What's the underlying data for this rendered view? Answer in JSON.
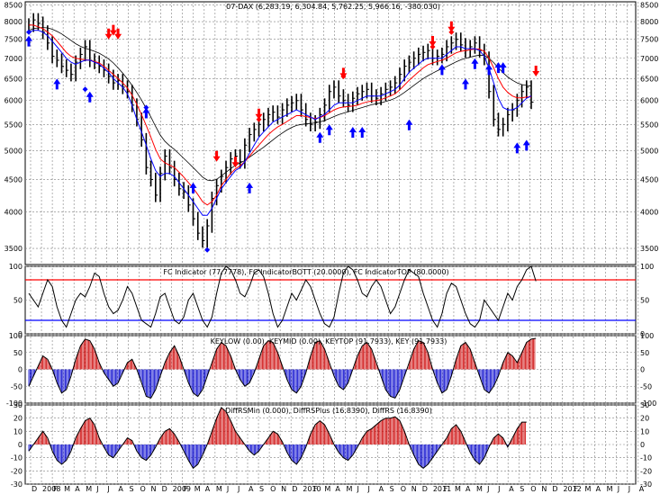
{
  "colors": {
    "frame": "#000000",
    "grid": "#808080",
    "price": "#000000",
    "ma_fast": "#0000ff",
    "ma_mid": "#ff0000",
    "ma_slow": "#000000",
    "buy": "#0000ff",
    "sell": "#ff0000",
    "fc_top": "#ff0000",
    "fc_bott": "#0000ff",
    "hist_pos": "#cc0000",
    "hist_neg": "#0000cc"
  },
  "chart_data": [
    {
      "type": "line",
      "title": "07-DAX (6,283.19, 6,304.84, 5,762.25, 5,966.16, -380.030)",
      "y_scale": "log",
      "ylim": [
        3300,
        8600
      ],
      "y_ticks": [
        8500,
        8000,
        7500,
        7000,
        6500,
        6000,
        5500,
        5000,
        4500,
        4000,
        3500
      ],
      "grid": true,
      "x_month_labels": [
        "D",
        "2008",
        "F",
        "M",
        "A",
        "M",
        "J",
        "J",
        "A",
        "S",
        "O",
        "N",
        "D",
        "2009",
        "F",
        "M",
        "A",
        "M",
        "J",
        "J",
        "A",
        "S",
        "O",
        "N",
        "D",
        "2010",
        "F",
        "M",
        "A",
        "M",
        "J",
        "J",
        "A",
        "S",
        "O",
        "N",
        "D",
        "2011",
        "F",
        "M",
        "A",
        "M",
        "J",
        "J",
        "A",
        "S",
        "O",
        "N",
        "D",
        "2012",
        "F",
        "M",
        "A",
        "M",
        "J",
        "J",
        "A"
      ],
      "series": [
        {
          "key": "close",
          "values": [
            7900,
            8050,
            7950,
            7700,
            7400,
            7050,
            6950,
            6800,
            6700,
            6600,
            6900,
            7100,
            7300,
            6950,
            6900,
            6800,
            6700,
            6550,
            6400,
            6450,
            6300,
            6200,
            5900,
            5600,
            5200,
            4700,
            4500,
            4250,
            4600,
            4900,
            4700,
            4500,
            4350,
            4300,
            4100,
            3900,
            3700,
            3600,
            3800,
            4200,
            4400,
            4550,
            4700,
            4850,
            4900,
            4800,
            5100,
            5300,
            5400,
            5500,
            5600,
            5700,
            5750,
            5650,
            5800,
            5900,
            5950,
            6000,
            5800,
            5600,
            5500,
            5550,
            5700,
            5900,
            6200,
            6300,
            6100,
            6000,
            5900,
            6050,
            6150,
            6200,
            6250,
            6100,
            6050,
            6150,
            6250,
            6300,
            6400,
            6600,
            6800,
            6900,
            7000,
            7100,
            7150,
            7200,
            7000,
            7050,
            7100,
            7300,
            7400,
            7500,
            7350,
            7200,
            7300,
            7400,
            7200,
            7000,
            6200,
            5600,
            5400,
            5500,
            5700,
            5800,
            6000,
            6200,
            6300,
            5966
          ]
        },
        {
          "key": "ma_fast",
          "values": [
            7700,
            7750,
            7750,
            7700,
            7600,
            7450,
            7300,
            7150,
            7000,
            6900,
            6850,
            6900,
            6950,
            6950,
            6900,
            6850,
            6750,
            6650,
            6500,
            6400,
            6300,
            6150,
            5900,
            5600,
            5350,
            5100,
            4850,
            4650,
            4550,
            4600,
            4600,
            4550,
            4450,
            4350,
            4250,
            4150,
            4050,
            3950,
            3950,
            4050,
            4200,
            4350,
            4450,
            4550,
            4650,
            4700,
            4800,
            4950,
            5100,
            5250,
            5350,
            5450,
            5550,
            5600,
            5650,
            5700,
            5750,
            5800,
            5750,
            5700,
            5650,
            5600,
            5650,
            5700,
            5800,
            5900,
            5950,
            5950,
            5950,
            5950,
            6000,
            6050,
            6100,
            6100,
            6100,
            6100,
            6150,
            6200,
            6250,
            6350,
            6500,
            6650,
            6750,
            6850,
            6950,
            7000,
            7000,
            7000,
            7000,
            7100,
            7200,
            7300,
            7300,
            7250,
            7250,
            7250,
            7200,
            7050,
            6750,
            6400,
            6050,
            5850,
            5800,
            5800,
            5850,
            5950,
            6050,
            6100
          ]
        },
        {
          "key": "ma_mid",
          "values": [
            7900,
            7900,
            7850,
            7800,
            7700,
            7600,
            7450,
            7300,
            7150,
            7050,
            7000,
            6980,
            6960,
            6950,
            6920,
            6880,
            6800,
            6700,
            6600,
            6500,
            6400,
            6280,
            6120,
            5920,
            5700,
            5480,
            5250,
            5020,
            4850,
            4780,
            4740,
            4700,
            4620,
            4540,
            4450,
            4360,
            4260,
            4150,
            4100,
            4150,
            4250,
            4400,
            4500,
            4600,
            4680,
            4730,
            4800,
            4900,
            5000,
            5100,
            5200,
            5300,
            5380,
            5450,
            5500,
            5560,
            5620,
            5680,
            5680,
            5660,
            5640,
            5620,
            5640,
            5680,
            5740,
            5800,
            5840,
            5860,
            5870,
            5880,
            5900,
            5940,
            5970,
            5990,
            6000,
            6020,
            6060,
            6100,
            6150,
            6240,
            6350,
            6460,
            6560,
            6660,
            6760,
            6840,
            6880,
            6920,
            6950,
            7000,
            7070,
            7140,
            7180,
            7200,
            7220,
            7240,
            7240,
            7180,
            7000,
            6760,
            6500,
            6300,
            6180,
            6100,
            6060,
            6060,
            6080,
            6080
          ]
        },
        {
          "key": "ma_slow",
          "values": [
            7750,
            7800,
            7820,
            7830,
            7820,
            7780,
            7720,
            7650,
            7560,
            7470,
            7380,
            7310,
            7260,
            7220,
            7180,
            7130,
            7060,
            6980,
            6880,
            6760,
            6630,
            6490,
            6340,
            6180,
            6010,
            5830,
            5650,
            5460,
            5290,
            5170,
            5090,
            5020,
            4940,
            4860,
            4780,
            4700,
            4620,
            4540,
            4490,
            4480,
            4500,
            4560,
            4620,
            4680,
            4740,
            4780,
            4820,
            4880,
            4940,
            5000,
            5060,
            5130,
            5200,
            5270,
            5330,
            5390,
            5440,
            5480,
            5500,
            5510,
            5520,
            5530,
            5550,
            5580,
            5620,
            5660,
            5700,
            5730,
            5760,
            5790,
            5820,
            5850,
            5880,
            5910,
            5930,
            5950,
            5980,
            6010,
            6050,
            6110,
            6180,
            6260,
            6340,
            6420,
            6500,
            6570,
            6630,
            6690,
            6740,
            6790,
            6850,
            6910,
            6960,
            7000,
            7030,
            7060,
            7080,
            7070,
            7000,
            6890,
            6760,
            6640,
            6540,
            6460,
            6400,
            6360,
            6340,
            6320
          ]
        }
      ],
      "buy_signals": [
        {
          "x": 0,
          "price": 7600
        },
        {
          "x": 6,
          "price": 6500
        },
        {
          "x": 13,
          "price": 6200
        },
        {
          "x": 25,
          "price": 5850
        },
        {
          "x": 35,
          "price": 4450
        },
        {
          "x": 47,
          "price": 4450
        },
        {
          "x": 62,
          "price": 5350
        },
        {
          "x": 64,
          "price": 5500
        },
        {
          "x": 69,
          "price": 5450
        },
        {
          "x": 71,
          "price": 5450
        },
        {
          "x": 81,
          "price": 5600
        },
        {
          "x": 88,
          "price": 6850
        },
        {
          "x": 93,
          "price": 6500
        },
        {
          "x": 95,
          "price": 7000
        },
        {
          "x": 98,
          "price": 6850
        },
        {
          "x": 100,
          "price": 6900
        },
        {
          "x": 101,
          "price": 6900
        },
        {
          "x": 104,
          "price": 5150
        },
        {
          "x": 106,
          "price": 5200
        }
      ],
      "sell_signals": [
        {
          "x": 17,
          "price": 7500
        },
        {
          "x": 18,
          "price": 7600
        },
        {
          "x": 19,
          "price": 7500
        },
        {
          "x": 40,
          "price": 4800
        },
        {
          "x": 44,
          "price": 4700
        },
        {
          "x": 49,
          "price": 5600
        },
        {
          "x": 67,
          "price": 6500
        },
        {
          "x": 86,
          "price": 7300
        },
        {
          "x": 90,
          "price": 7700
        },
        {
          "x": 108,
          "price": 6550
        }
      ],
      "diamonds": [
        {
          "x": 0,
          "price": 7700,
          "color": "buy"
        },
        {
          "x": 12,
          "price": 6250,
          "color": "buy"
        },
        {
          "x": 25,
          "price": 5850,
          "color": "buy"
        },
        {
          "x": 38,
          "price": 3480,
          "color": "buy"
        },
        {
          "x": 49,
          "price": 5600,
          "color": "sell"
        },
        {
          "x": 67,
          "price": 6550,
          "color": "sell"
        },
        {
          "x": 86,
          "price": 7300,
          "color": "sell"
        },
        {
          "x": 90,
          "price": 7700,
          "color": "sell"
        }
      ]
    },
    {
      "type": "line",
      "title": "FC Indicator (77.7778), FC IndicatorBOTT (20.0000), FC IndicatorTOP (80.0000)",
      "ylim": [
        0,
        100
      ],
      "y_ticks": [
        100,
        50,
        0
      ],
      "reference_lines": [
        {
          "name": "FC IndicatorTOP",
          "value": 80
        },
        {
          "name": "FC IndicatorBOTT",
          "value": 20
        }
      ],
      "series": [
        {
          "key": "fc",
          "values": [
            60,
            50,
            40,
            60,
            80,
            70,
            40,
            20,
            10,
            30,
            50,
            60,
            55,
            70,
            90,
            85,
            60,
            40,
            30,
            35,
            50,
            70,
            60,
            40,
            20,
            15,
            10,
            30,
            55,
            60,
            40,
            20,
            15,
            25,
            50,
            60,
            40,
            20,
            10,
            25,
            60,
            90,
            100,
            95,
            80,
            60,
            55,
            70,
            90,
            95,
            85,
            60,
            30,
            10,
            20,
            40,
            60,
            50,
            65,
            80,
            70,
            50,
            30,
            15,
            10,
            25,
            60,
            90,
            100,
            95,
            80,
            60,
            55,
            70,
            80,
            70,
            50,
            30,
            40,
            60,
            80,
            95,
            90,
            85,
            60,
            40,
            20,
            10,
            30,
            60,
            75,
            70,
            50,
            30,
            15,
            10,
            20,
            50,
            40,
            30,
            20,
            40,
            60,
            50,
            70,
            80,
            95,
            100,
            78
          ]
        }
      ]
    },
    {
      "type": "line",
      "title": "KEYLOW (0.00), KEYMID (0.00), KEYTOP (91.7933), KEY (91.7933)",
      "ylim": [
        -100,
        100
      ],
      "y_ticks": [
        100,
        50,
        0,
        -50,
        -100
      ],
      "series": [
        {
          "key": "key",
          "values": [
            -50,
            -20,
            10,
            40,
            30,
            0,
            -40,
            -70,
            -60,
            -20,
            30,
            70,
            90,
            85,
            60,
            20,
            -10,
            -30,
            -50,
            -40,
            -10,
            20,
            30,
            0,
            -40,
            -80,
            -85,
            -60,
            -20,
            20,
            50,
            70,
            40,
            0,
            -40,
            -70,
            -80,
            -60,
            -20,
            20,
            60,
            80,
            70,
            40,
            0,
            -30,
            -50,
            -40,
            -10,
            30,
            70,
            85,
            80,
            50,
            10,
            -30,
            -60,
            -70,
            -50,
            -10,
            40,
            80,
            85,
            60,
            20,
            -20,
            -50,
            -60,
            -40,
            0,
            40,
            70,
            80,
            60,
            20,
            -20,
            -60,
            -80,
            -85,
            -60,
            -20,
            20,
            60,
            85,
            80,
            50,
            0,
            -40,
            -70,
            -60,
            -20,
            30,
            70,
            80,
            60,
            20,
            -20,
            -60,
            -70,
            -50,
            -20,
            20,
            50,
            40,
            20,
            50,
            80,
            90,
            92
          ]
        }
      ]
    },
    {
      "type": "line",
      "title": "DiffRSMin (0.000), DiffRSPlus (16.8390), DiffRS (16.8390)",
      "ylim": [
        -30,
        30
      ],
      "y_ticks": [
        30,
        20,
        10,
        0,
        -10,
        -20,
        -30
      ],
      "series": [
        {
          "key": "diffrs",
          "values": [
            -5,
            0,
            5,
            10,
            5,
            -5,
            -12,
            -15,
            -12,
            -5,
            5,
            12,
            18,
            20,
            15,
            5,
            -2,
            -8,
            -10,
            -5,
            0,
            5,
            3,
            -5,
            -10,
            -12,
            -8,
            -2,
            5,
            10,
            12,
            8,
            2,
            -5,
            -12,
            -18,
            -15,
            -8,
            0,
            10,
            20,
            28,
            25,
            18,
            10,
            5,
            0,
            -5,
            -8,
            -5,
            0,
            5,
            10,
            8,
            2,
            -6,
            -12,
            -15,
            -10,
            -2,
            8,
            15,
            18,
            15,
            8,
            0,
            -6,
            -10,
            -12,
            -8,
            -2,
            5,
            10,
            12,
            15,
            18,
            20,
            20,
            21,
            18,
            10,
            0,
            -8,
            -15,
            -18,
            -15,
            -10,
            -5,
            0,
            5,
            12,
            15,
            10,
            2,
            -6,
            -12,
            -15,
            -10,
            -2,
            5,
            8,
            5,
            -2,
            5,
            12,
            17,
            17
          ]
        }
      ]
    }
  ]
}
